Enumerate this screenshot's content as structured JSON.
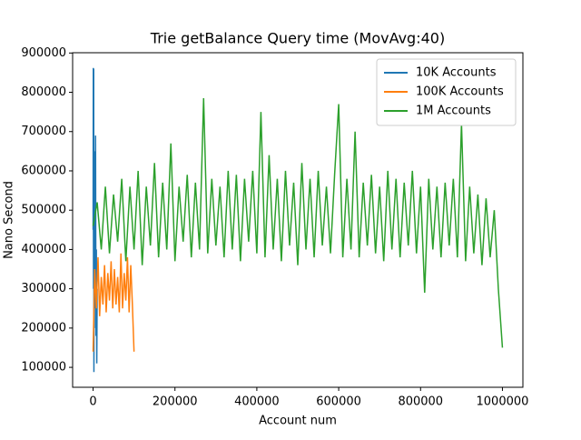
{
  "chart_data": {
    "type": "line",
    "title": "Trie getBalance Query time (MovAvg:40)",
    "x_label": "Account num",
    "y_label": "Nano Second",
    "xlim": [
      -50000,
      1050000
    ],
    "ylim": [
      49300,
      900700
    ],
    "xticks": [
      0,
      200000,
      400000,
      600000,
      800000,
      1000000
    ],
    "yticks": [
      100000,
      200000,
      300000,
      400000,
      500000,
      600000,
      700000,
      800000,
      900000
    ],
    "legend": "upper right",
    "series": [
      {
        "name": "10K Accounts",
        "color": "#1f77b4",
        "x": [
          0,
          500,
          1000,
          1500,
          2000,
          2500,
          3000,
          4000,
          5000,
          6000,
          7000,
          8000,
          9000,
          10000
        ],
        "values": [
          450000,
          862000,
          300000,
          860000,
          88000,
          500000,
          200000,
          650000,
          250000,
          690000,
          180000,
          400000,
          110000,
          300000
        ]
      },
      {
        "name": "100K Accounts",
        "color": "#ff7f0e",
        "x": [
          0,
          4000,
          8000,
          12000,
          16000,
          20000,
          24000,
          28000,
          32000,
          36000,
          40000,
          44000,
          48000,
          52000,
          56000,
          60000,
          64000,
          68000,
          72000,
          76000,
          80000,
          84000,
          88000,
          92000,
          96000,
          100000
        ],
        "values": [
          140000,
          350000,
          250000,
          380000,
          230000,
          330000,
          260000,
          360000,
          240000,
          340000,
          270000,
          370000,
          250000,
          350000,
          260000,
          330000,
          240000,
          390000,
          250000,
          340000,
          270000,
          380000,
          240000,
          360000,
          260000,
          140000
        ]
      },
      {
        "name": "1M Accounts",
        "color": "#2ca02c",
        "x": [
          0,
          10000,
          20000,
          30000,
          40000,
          50000,
          60000,
          70000,
          80000,
          90000,
          100000,
          110000,
          120000,
          130000,
          140000,
          150000,
          160000,
          170000,
          180000,
          190000,
          200000,
          210000,
          220000,
          230000,
          240000,
          250000,
          260000,
          270000,
          280000,
          290000,
          300000,
          310000,
          320000,
          330000,
          340000,
          350000,
          360000,
          370000,
          380000,
          390000,
          400000,
          410000,
          420000,
          430000,
          440000,
          450000,
          460000,
          470000,
          480000,
          490000,
          500000,
          510000,
          520000,
          530000,
          540000,
          550000,
          560000,
          570000,
          580000,
          590000,
          600000,
          610000,
          620000,
          630000,
          640000,
          650000,
          660000,
          670000,
          680000,
          690000,
          700000,
          710000,
          720000,
          730000,
          740000,
          750000,
          760000,
          770000,
          780000,
          790000,
          800000,
          810000,
          820000,
          830000,
          840000,
          850000,
          860000,
          870000,
          880000,
          890000,
          900000,
          910000,
          920000,
          930000,
          940000,
          950000,
          960000,
          970000,
          980000,
          990000,
          1000000
        ],
        "values": [
          460000,
          520000,
          400000,
          560000,
          390000,
          540000,
          420000,
          580000,
          370000,
          560000,
          400000,
          600000,
          360000,
          560000,
          410000,
          620000,
          380000,
          570000,
          400000,
          670000,
          370000,
          560000,
          420000,
          590000,
          380000,
          570000,
          400000,
          785000,
          390000,
          580000,
          410000,
          560000,
          380000,
          600000,
          400000,
          590000,
          370000,
          580000,
          420000,
          600000,
          390000,
          750000,
          380000,
          640000,
          400000,
          580000,
          370000,
          600000,
          410000,
          570000,
          360000,
          620000,
          400000,
          580000,
          380000,
          600000,
          410000,
          560000,
          390000,
          590000,
          770000,
          380000,
          580000,
          400000,
          700000,
          380000,
          570000,
          410000,
          590000,
          390000,
          560000,
          370000,
          600000,
          400000,
          580000,
          380000,
          570000,
          410000,
          600000,
          390000,
          560000,
          290000,
          580000,
          400000,
          560000,
          380000,
          570000,
          410000,
          580000,
          380000,
          720000,
          370000,
          560000,
          390000,
          540000,
          360000,
          530000,
          380000,
          500000,
          300000,
          150000
        ]
      }
    ]
  }
}
